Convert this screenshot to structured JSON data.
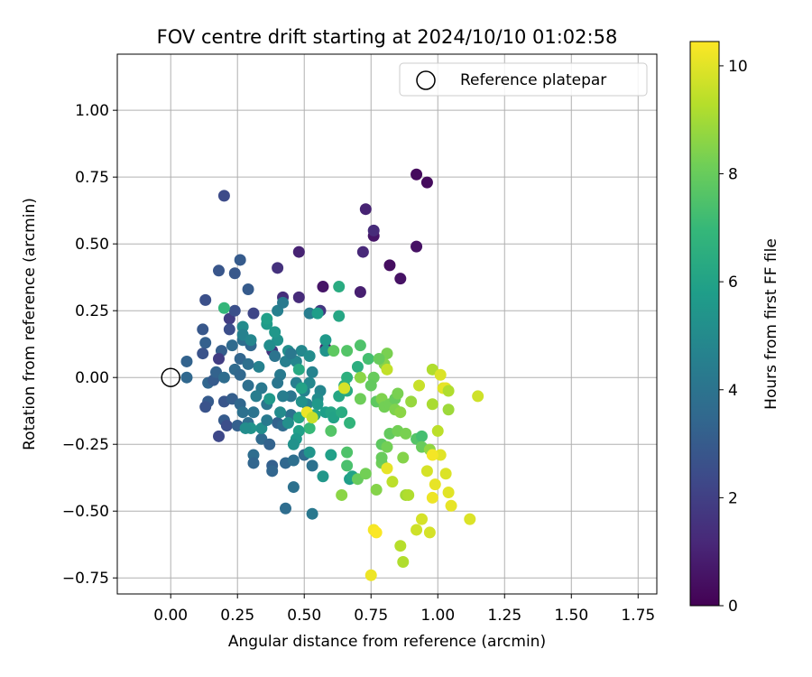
{
  "chart_data": {
    "type": "scatter",
    "title": "FOV centre drift starting at 2024/10/10 01:02:58",
    "xlabel": "Angular distance from reference (arcmin)",
    "ylabel": "Rotation from reference (arcmin)",
    "xlim": [
      -0.2,
      1.82
    ],
    "ylim": [
      -0.81,
      1.21
    ],
    "xticks": [
      0.0,
      0.25,
      0.5,
      0.75,
      1.0,
      1.25,
      1.5,
      1.75
    ],
    "xtick_labels": [
      "0.00",
      "0.25",
      "0.50",
      "0.75",
      "1.00",
      "1.25",
      "1.50",
      "1.75"
    ],
    "yticks": [
      -0.75,
      -0.5,
      -0.25,
      0.0,
      0.25,
      0.5,
      0.75,
      1.0
    ],
    "ytick_labels": [
      "−0.75",
      "−0.50",
      "−0.25",
      "0.00",
      "0.25",
      "0.50",
      "0.75",
      "1.00"
    ],
    "grid": true,
    "legend": {
      "position": "top-right",
      "entries": [
        "Reference platepar"
      ]
    },
    "reference_point": {
      "name": "Reference platepar",
      "x": 0.0,
      "y": 0.0,
      "marker": "open-circle"
    },
    "colorbar": {
      "label": "Hours from first FF file",
      "colormap": "viridis",
      "range": [
        0,
        10.45
      ],
      "ticks": [
        0,
        2,
        4,
        6,
        8,
        10
      ],
      "tick_labels": [
        "0",
        "2",
        "4",
        "6",
        "8",
        "10"
      ],
      "stops": [
        "#440154",
        "#482878",
        "#3e4989",
        "#31688e",
        "#26828e",
        "#1f9e89",
        "#35b779",
        "#6ece58",
        "#b5de2b",
        "#fde725"
      ]
    },
    "points": [
      {
        "x": 0.92,
        "y": 0.76,
        "t": 0.3
      },
      {
        "x": 0.96,
        "y": 0.73,
        "t": 0.3
      },
      {
        "x": 0.92,
        "y": 0.49,
        "t": 0.5
      },
      {
        "x": 0.82,
        "y": 0.42,
        "t": 0.4
      },
      {
        "x": 0.86,
        "y": 0.37,
        "t": 0.5
      },
      {
        "x": 0.76,
        "y": 0.53,
        "t": 0.6
      },
      {
        "x": 0.73,
        "y": 0.63,
        "t": 1.0
      },
      {
        "x": 0.76,
        "y": 0.55,
        "t": 1.3
      },
      {
        "x": 0.72,
        "y": 0.47,
        "t": 1.2
      },
      {
        "x": 0.71,
        "y": 0.32,
        "t": 0.9
      },
      {
        "x": 0.58,
        "y": 0.11,
        "t": 0.8
      },
      {
        "x": 0.57,
        "y": 0.34,
        "t": 0.6
      },
      {
        "x": 0.48,
        "y": 0.47,
        "t": 1.0
      },
      {
        "x": 0.48,
        "y": 0.3,
        "t": 1.3
      },
      {
        "x": 0.4,
        "y": 0.41,
        "t": 1.5
      },
      {
        "x": 0.42,
        "y": 0.3,
        "t": 1.4
      },
      {
        "x": 0.38,
        "y": 0.1,
        "t": 1.6
      },
      {
        "x": 0.56,
        "y": 0.25,
        "t": 1.7
      },
      {
        "x": 0.2,
        "y": 0.68,
        "t": 2.4
      },
      {
        "x": 0.18,
        "y": 0.4,
        "t": 2.8
      },
      {
        "x": 0.24,
        "y": 0.39,
        "t": 2.9
      },
      {
        "x": 0.26,
        "y": 0.44,
        "t": 3.0
      },
      {
        "x": 0.13,
        "y": 0.29,
        "t": 2.6
      },
      {
        "x": 0.22,
        "y": 0.22,
        "t": 1.9
      },
      {
        "x": 0.29,
        "y": 0.33,
        "t": 3.0
      },
      {
        "x": 0.24,
        "y": 0.25,
        "t": 2.6
      },
      {
        "x": 0.31,
        "y": 0.24,
        "t": 2.2
      },
      {
        "x": 0.22,
        "y": 0.18,
        "t": 2.5
      },
      {
        "x": 0.12,
        "y": 0.18,
        "t": 2.9
      },
      {
        "x": 0.13,
        "y": 0.13,
        "t": 3.2
      },
      {
        "x": 0.06,
        "y": 0.06,
        "t": 3.3
      },
      {
        "x": 0.12,
        "y": 0.09,
        "t": 2.7
      },
      {
        "x": 0.19,
        "y": 0.1,
        "t": 3.1
      },
      {
        "x": 0.23,
        "y": 0.12,
        "t": 3.6
      },
      {
        "x": 0.27,
        "y": 0.14,
        "t": 3.8
      },
      {
        "x": 0.3,
        "y": 0.12,
        "t": 3.5
      },
      {
        "x": 0.18,
        "y": 0.07,
        "t": 1.9
      },
      {
        "x": 0.06,
        "y": 0.0,
        "t": 3.5
      },
      {
        "x": 0.14,
        "y": -0.02,
        "t": 3.4
      },
      {
        "x": 0.24,
        "y": 0.03,
        "t": 3.6
      },
      {
        "x": 0.26,
        "y": 0.01,
        "t": 3.5
      },
      {
        "x": 0.29,
        "y": -0.03,
        "t": 3.8
      },
      {
        "x": 0.14,
        "y": -0.09,
        "t": 3.0
      },
      {
        "x": 0.13,
        "y": -0.11,
        "t": 2.7
      },
      {
        "x": 0.2,
        "y": -0.09,
        "t": 2.8
      },
      {
        "x": 0.23,
        "y": -0.08,
        "t": 3.1
      },
      {
        "x": 0.26,
        "y": -0.1,
        "t": 3.5
      },
      {
        "x": 0.2,
        "y": -0.16,
        "t": 3.0
      },
      {
        "x": 0.21,
        "y": -0.18,
        "t": 2.5
      },
      {
        "x": 0.18,
        "y": -0.22,
        "t": 2.3
      },
      {
        "x": 0.25,
        "y": -0.18,
        "t": 3.2
      },
      {
        "x": 0.29,
        "y": -0.17,
        "t": 3.8
      },
      {
        "x": 0.31,
        "y": -0.13,
        "t": 4.0
      },
      {
        "x": 0.36,
        "y": -0.1,
        "t": 4.1
      },
      {
        "x": 0.34,
        "y": -0.23,
        "t": 3.6
      },
      {
        "x": 0.37,
        "y": -0.25,
        "t": 3.3
      },
      {
        "x": 0.31,
        "y": -0.29,
        "t": 3.7
      },
      {
        "x": 0.31,
        "y": -0.32,
        "t": 3.4
      },
      {
        "x": 0.38,
        "y": -0.33,
        "t": 3.2
      },
      {
        "x": 0.38,
        "y": -0.35,
        "t": 3.4
      },
      {
        "x": 0.43,
        "y": -0.32,
        "t": 3.5
      },
      {
        "x": 0.46,
        "y": -0.31,
        "t": 3.8
      },
      {
        "x": 0.46,
        "y": -0.41,
        "t": 3.9
      },
      {
        "x": 0.43,
        "y": -0.49,
        "t": 3.7
      },
      {
        "x": 0.53,
        "y": -0.51,
        "t": 4.2
      },
      {
        "x": 0.5,
        "y": -0.29,
        "t": 3.6
      },
      {
        "x": 0.53,
        "y": -0.33,
        "t": 3.9
      },
      {
        "x": 0.4,
        "y": -0.17,
        "t": 3.3
      },
      {
        "x": 0.42,
        "y": -0.18,
        "t": 3.6
      },
      {
        "x": 0.45,
        "y": -0.14,
        "t": 3.9
      },
      {
        "x": 0.45,
        "y": -0.07,
        "t": 4.1
      },
      {
        "x": 0.42,
        "y": -0.07,
        "t": 4.4
      },
      {
        "x": 0.47,
        "y": -0.02,
        "t": 4.5
      },
      {
        "x": 0.5,
        "y": -0.05,
        "t": 4.6
      },
      {
        "x": 0.51,
        "y": -0.1,
        "t": 4.7
      },
      {
        "x": 0.56,
        "y": -0.05,
        "t": 4.8
      },
      {
        "x": 0.55,
        "y": -0.08,
        "t": 5.0
      },
      {
        "x": 0.52,
        "y": -0.02,
        "t": 4.9
      },
      {
        "x": 0.41,
        "y": 0.01,
        "t": 4.3
      },
      {
        "x": 0.43,
        "y": 0.06,
        "t": 4.5
      },
      {
        "x": 0.47,
        "y": 0.06,
        "t": 4.8
      },
      {
        "x": 0.49,
        "y": 0.1,
        "t": 4.9
      },
      {
        "x": 0.52,
        "y": 0.08,
        "t": 5.1
      },
      {
        "x": 0.53,
        "y": 0.02,
        "t": 4.7
      },
      {
        "x": 0.44,
        "y": 0.1,
        "t": 5.2
      },
      {
        "x": 0.4,
        "y": 0.14,
        "t": 5.3
      },
      {
        "x": 0.39,
        "y": 0.17,
        "t": 5.5
      },
      {
        "x": 0.36,
        "y": 0.2,
        "t": 5.7
      },
      {
        "x": 0.36,
        "y": 0.22,
        "t": 5.9
      },
      {
        "x": 0.37,
        "y": 0.12,
        "t": 5.1
      },
      {
        "x": 0.27,
        "y": 0.19,
        "t": 5.0
      },
      {
        "x": 0.27,
        "y": 0.16,
        "t": 4.6
      },
      {
        "x": 0.3,
        "y": 0.14,
        "t": 4.8
      },
      {
        "x": 0.4,
        "y": 0.25,
        "t": 4.5
      },
      {
        "x": 0.42,
        "y": 0.28,
        "t": 4.3
      },
      {
        "x": 0.52,
        "y": 0.24,
        "t": 4.4
      },
      {
        "x": 0.55,
        "y": 0.24,
        "t": 5.8
      },
      {
        "x": 0.58,
        "y": 0.14,
        "t": 5.6
      },
      {
        "x": 0.58,
        "y": 0.1,
        "t": 5.4
      },
      {
        "x": 0.2,
        "y": 0.26,
        "t": 6.9
      },
      {
        "x": 0.63,
        "y": 0.34,
        "t": 6.4
      },
      {
        "x": 0.63,
        "y": 0.23,
        "t": 6.2
      },
      {
        "x": 0.48,
        "y": 0.03,
        "t": 6.3
      },
      {
        "x": 0.49,
        "y": -0.04,
        "t": 6.0
      },
      {
        "x": 0.55,
        "y": -0.1,
        "t": 5.6
      },
      {
        "x": 0.58,
        "y": -0.13,
        "t": 5.8
      },
      {
        "x": 0.6,
        "y": -0.13,
        "t": 6.1
      },
      {
        "x": 0.61,
        "y": -0.15,
        "t": 6.0
      },
      {
        "x": 0.64,
        "y": -0.13,
        "t": 6.4
      },
      {
        "x": 0.63,
        "y": -0.07,
        "t": 6.2
      },
      {
        "x": 0.66,
        "y": -0.05,
        "t": 6.3
      },
      {
        "x": 0.65,
        "y": -0.03,
        "t": 6.5
      },
      {
        "x": 0.66,
        "y": 0.0,
        "t": 6.6
      },
      {
        "x": 0.67,
        "y": -0.17,
        "t": 6.8
      },
      {
        "x": 0.54,
        "y": -0.14,
        "t": 6.1
      },
      {
        "x": 0.52,
        "y": -0.19,
        "t": 7.0
      },
      {
        "x": 0.48,
        "y": -0.15,
        "t": 6.1
      },
      {
        "x": 0.48,
        "y": -0.2,
        "t": 5.9
      },
      {
        "x": 0.47,
        "y": -0.23,
        "t": 5.6
      },
      {
        "x": 0.46,
        "y": -0.25,
        "t": 5.3
      },
      {
        "x": 0.44,
        "y": -0.17,
        "t": 5.2
      },
      {
        "x": 0.41,
        "y": -0.13,
        "t": 5.0
      },
      {
        "x": 0.37,
        "y": -0.08,
        "t": 5.6
      },
      {
        "x": 0.34,
        "y": -0.19,
        "t": 5.2
      },
      {
        "x": 0.3,
        "y": -0.19,
        "t": 5.4
      },
      {
        "x": 0.28,
        "y": -0.19,
        "t": 5.1
      },
      {
        "x": 0.52,
        "y": -0.28,
        "t": 5.4
      },
      {
        "x": 0.57,
        "y": -0.37,
        "t": 5.5
      },
      {
        "x": 0.6,
        "y": -0.29,
        "t": 5.9
      },
      {
        "x": 0.67,
        "y": -0.38,
        "t": 5.8
      },
      {
        "x": 0.68,
        "y": -0.37,
        "t": 6.0
      },
      {
        "x": 0.7,
        "y": 0.04,
        "t": 6.5
      },
      {
        "x": 0.71,
        "y": 0.12,
        "t": 7.5
      },
      {
        "x": 0.74,
        "y": 0.07,
        "t": 7.3
      },
      {
        "x": 0.66,
        "y": 0.1,
        "t": 7.6
      },
      {
        "x": 0.61,
        "y": 0.1,
        "t": 7.8
      },
      {
        "x": 0.6,
        "y": -0.2,
        "t": 7.6
      },
      {
        "x": 0.66,
        "y": -0.28,
        "t": 7.5
      },
      {
        "x": 0.66,
        "y": -0.33,
        "t": 7.4
      },
      {
        "x": 0.64,
        "y": -0.44,
        "t": 8.6
      },
      {
        "x": 0.7,
        "y": -0.38,
        "t": 8.0
      },
      {
        "x": 0.73,
        "y": -0.36,
        "t": 8.2
      },
      {
        "x": 0.77,
        "y": -0.42,
        "t": 8.5
      },
      {
        "x": 0.79,
        "y": -0.32,
        "t": 8.1
      },
      {
        "x": 0.79,
        "y": -0.3,
        "t": 8.0
      },
      {
        "x": 0.79,
        "y": -0.25,
        "t": 7.8
      },
      {
        "x": 0.81,
        "y": -0.26,
        "t": 8.2
      },
      {
        "x": 0.82,
        "y": -0.21,
        "t": 7.9
      },
      {
        "x": 0.85,
        "y": -0.2,
        "t": 8.2
      },
      {
        "x": 0.88,
        "y": -0.21,
        "t": 8.3
      },
      {
        "x": 0.87,
        "y": -0.3,
        "t": 8.5
      },
      {
        "x": 0.92,
        "y": -0.23,
        "t": 7.6
      },
      {
        "x": 0.94,
        "y": -0.22,
        "t": 7.3
      },
      {
        "x": 0.94,
        "y": -0.26,
        "t": 8.0
      },
      {
        "x": 0.97,
        "y": -0.27,
        "t": 8.7
      },
      {
        "x": 0.88,
        "y": -0.44,
        "t": 9.0
      },
      {
        "x": 0.89,
        "y": -0.44,
        "t": 9.2
      },
      {
        "x": 0.83,
        "y": -0.39,
        "t": 9.4
      },
      {
        "x": 0.86,
        "y": -0.63,
        "t": 9.3
      },
      {
        "x": 0.87,
        "y": -0.69,
        "t": 9.2
      },
      {
        "x": 0.75,
        "y": -0.74,
        "t": 10.2
      },
      {
        "x": 0.76,
        "y": -0.57,
        "t": 10.3
      },
      {
        "x": 0.77,
        "y": -0.58,
        "t": 10.4
      },
      {
        "x": 0.81,
        "y": -0.34,
        "t": 10.1
      },
      {
        "x": 0.77,
        "y": -0.09,
        "t": 7.8
      },
      {
        "x": 0.79,
        "y": -0.08,
        "t": 8.4
      },
      {
        "x": 0.8,
        "y": -0.11,
        "t": 8.2
      },
      {
        "x": 0.81,
        "y": 0.09,
        "t": 8.3
      },
      {
        "x": 0.8,
        "y": 0.05,
        "t": 8.5
      },
      {
        "x": 0.78,
        "y": 0.07,
        "t": 8.0
      },
      {
        "x": 0.82,
        "y": -0.1,
        "t": 8.2
      },
      {
        "x": 0.84,
        "y": -0.08,
        "t": 8.0
      },
      {
        "x": 0.85,
        "y": -0.06,
        "t": 8.3
      },
      {
        "x": 0.84,
        "y": -0.12,
        "t": 8.4
      },
      {
        "x": 0.86,
        "y": -0.13,
        "t": 8.6
      },
      {
        "x": 0.9,
        "y": -0.09,
        "t": 8.8
      },
      {
        "x": 0.93,
        "y": -0.03,
        "t": 9.6
      },
      {
        "x": 0.98,
        "y": 0.03,
        "t": 9.2
      },
      {
        "x": 0.98,
        "y": -0.1,
        "t": 9.1
      },
      {
        "x": 1.01,
        "y": 0.01,
        "t": 9.9
      },
      {
        "x": 1.02,
        "y": -0.04,
        "t": 10.0
      },
      {
        "x": 1.03,
        "y": -0.04,
        "t": 10.1
      },
      {
        "x": 1.04,
        "y": -0.05,
        "t": 9.2
      },
      {
        "x": 1.04,
        "y": -0.12,
        "t": 8.9
      },
      {
        "x": 1.0,
        "y": -0.2,
        "t": 9.4
      },
      {
        "x": 0.96,
        "y": -0.35,
        "t": 9.8
      },
      {
        "x": 0.98,
        "y": -0.45,
        "t": 10.2
      },
      {
        "x": 0.99,
        "y": -0.4,
        "t": 10.1
      },
      {
        "x": 1.01,
        "y": -0.29,
        "t": 10.0
      },
      {
        "x": 0.98,
        "y": -0.29,
        "t": 10.3
      },
      {
        "x": 1.03,
        "y": -0.36,
        "t": 9.9
      },
      {
        "x": 1.04,
        "y": -0.43,
        "t": 10.0
      },
      {
        "x": 1.05,
        "y": -0.48,
        "t": 10.1
      },
      {
        "x": 0.97,
        "y": -0.58,
        "t": 9.8
      },
      {
        "x": 0.92,
        "y": -0.57,
        "t": 9.7
      },
      {
        "x": 0.94,
        "y": -0.53,
        "t": 9.8
      },
      {
        "x": 1.12,
        "y": -0.53,
        "t": 9.9
      },
      {
        "x": 1.15,
        "y": -0.07,
        "t": 9.7
      },
      {
        "x": 0.76,
        "y": 0.0,
        "t": 8.0
      },
      {
        "x": 0.81,
        "y": 0.03,
        "t": 9.5
      },
      {
        "x": 0.75,
        "y": -0.03,
        "t": 7.9
      },
      {
        "x": 0.71,
        "y": -0.08,
        "t": 8.1
      },
      {
        "x": 0.71,
        "y": 0.0,
        "t": 8.6
      },
      {
        "x": 0.51,
        "y": -0.13,
        "t": 10.2
      },
      {
        "x": 0.53,
        "y": -0.15,
        "t": 9.6
      },
      {
        "x": 0.65,
        "y": -0.04,
        "t": 9.8
      },
      {
        "x": 0.34,
        "y": -0.04,
        "t": 4.2
      },
      {
        "x": 0.33,
        "y": 0.04,
        "t": 4.6
      },
      {
        "x": 0.4,
        "y": -0.02,
        "t": 4.1
      },
      {
        "x": 0.49,
        "y": -0.09,
        "t": 5.3
      },
      {
        "x": 0.16,
        "y": -0.01,
        "t": 3.0
      },
      {
        "x": 0.17,
        "y": 0.02,
        "t": 3.3
      },
      {
        "x": 0.26,
        "y": 0.07,
        "t": 3.4
      },
      {
        "x": 0.2,
        "y": 0.0,
        "t": 3.7
      },
      {
        "x": 0.39,
        "y": 0.08,
        "t": 4.0
      },
      {
        "x": 0.45,
        "y": 0.09,
        "t": 4.2
      },
      {
        "x": 0.27,
        "y": -0.13,
        "t": 3.9
      },
      {
        "x": 0.36,
        "y": -0.16,
        "t": 4.3
      },
      {
        "x": 0.32,
        "y": -0.07,
        "t": 4.4
      },
      {
        "x": 0.29,
        "y": 0.05,
        "t": 3.8
      }
    ]
  }
}
